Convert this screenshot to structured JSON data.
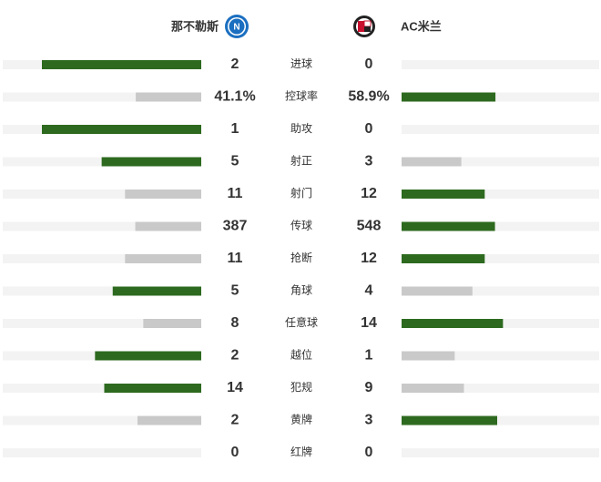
{
  "header": {
    "home": "那不勒斯",
    "away": "AC米兰"
  },
  "rows": [
    {
      "label": "进球",
      "home": 2,
      "away": 0
    },
    {
      "label": "控球率",
      "home": 41.1,
      "away": 58.9,
      "home_label": "41.1%",
      "away_label": "58.9%"
    },
    {
      "label": "助攻",
      "home": 1,
      "away": 0
    },
    {
      "label": "射正",
      "home": 5,
      "away": 3
    },
    {
      "label": "射门",
      "home": 11,
      "away": 12
    },
    {
      "label": "传球",
      "home": 387,
      "away": 548
    },
    {
      "label": "抢断",
      "home": 11,
      "away": 12
    },
    {
      "label": "角球",
      "home": 5,
      "away": 4
    },
    {
      "label": "任意球",
      "home": 8,
      "away": 14
    },
    {
      "label": "越位",
      "home": 2,
      "away": 1
    },
    {
      "label": "犯规",
      "home": 14,
      "away": 9
    },
    {
      "label": "黄牌",
      "home": 2,
      "away": 3
    },
    {
      "label": "红牌",
      "home": 0,
      "away": 0
    }
  ]
}
